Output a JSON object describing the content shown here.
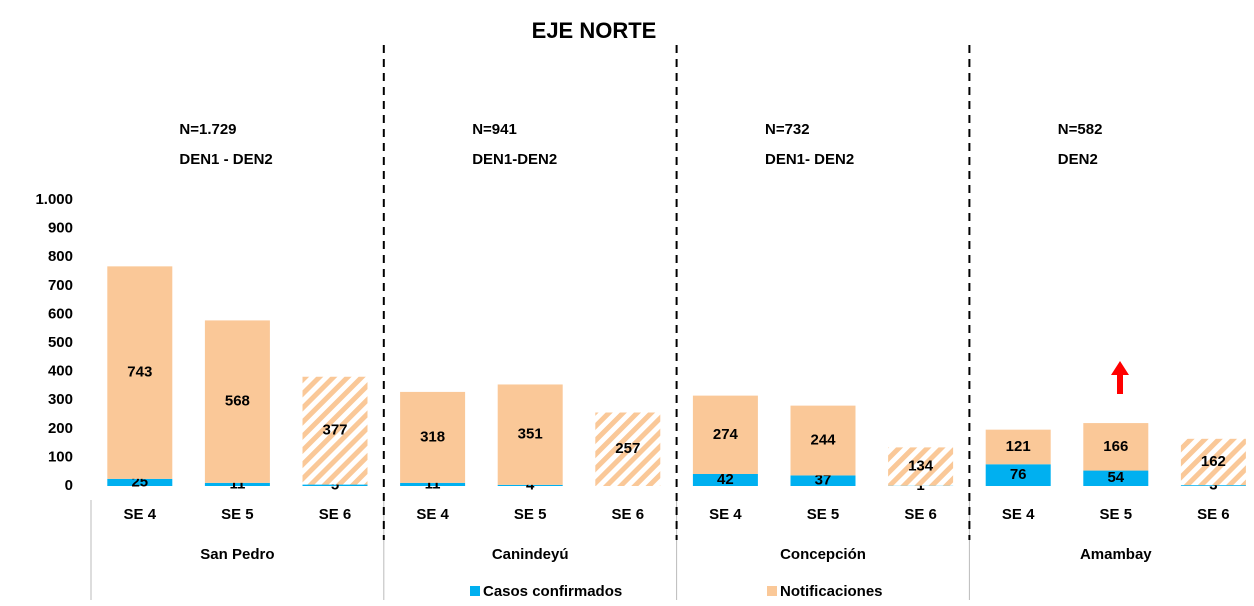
{
  "chart_data": {
    "type": "bar",
    "stacked": true,
    "title": "EJE NORTE",
    "categories": [
      "SE 4",
      "SE 5",
      "SE 6",
      "SE 4",
      "SE 5",
      "SE 6",
      "SE 4",
      "SE 5",
      "SE 6",
      "SE 4",
      "SE 5",
      "SE 6"
    ],
    "groups": [
      {
        "name": "San Pedro",
        "note": [
          "N=1.729",
          "DEN1 - DEN2"
        ],
        "size": 3
      },
      {
        "name": "Canindeyú",
        "note": [
          "N=941",
          "DEN1-DEN2"
        ],
        "size": 3
      },
      {
        "name": "Concepción",
        "note": [
          "N=732",
          "DEN1- DEN2"
        ],
        "size": 3
      },
      {
        "name": "Amambay",
        "note": [
          "N=582",
          "DEN2"
        ],
        "size": 3
      }
    ],
    "series": [
      {
        "name": "Casos confirmados",
        "color": "#00b0f0",
        "values": [
          25,
          11,
          5,
          11,
          4,
          null,
          42,
          37,
          1,
          76,
          54,
          3
        ]
      },
      {
        "name": "Notificaciones",
        "color": "#fac898",
        "values": [
          743,
          568,
          377,
          318,
          351,
          257,
          274,
          244,
          134,
          121,
          166,
          162
        ]
      }
    ],
    "hatched": [
      false,
      false,
      true,
      false,
      false,
      true,
      false,
      false,
      true,
      false,
      false,
      true
    ],
    "ylim": [
      0,
      1000
    ],
    "yticks": [
      0,
      100,
      200,
      300,
      400,
      500,
      600,
      700,
      800,
      900,
      {
        "value": 1000,
        "label": "1.000"
      }
    ],
    "grid": false,
    "legend": "bottom"
  }
}
